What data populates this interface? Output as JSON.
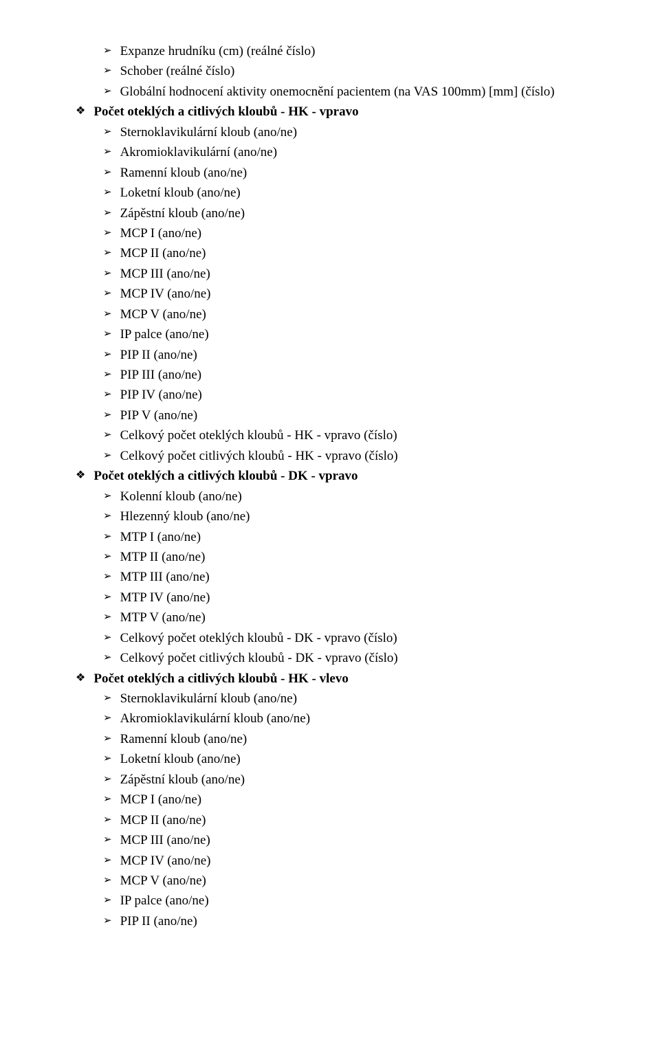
{
  "bullets": {
    "chevron": "➢",
    "diamond": "❖"
  },
  "items": [
    {
      "level": 1,
      "bullet": "chevron",
      "bold": false,
      "text": "Expanze hrudníku (cm) (reálné číslo)"
    },
    {
      "level": 1,
      "bullet": "chevron",
      "bold": false,
      "text": "Schober (reálné číslo)"
    },
    {
      "level": 1,
      "bullet": "chevron",
      "bold": false,
      "text": "Globální hodnocení aktivity onemocnění pacientem (na VAS 100mm) [mm] (číslo)"
    },
    {
      "level": 0,
      "bullet": "diamond",
      "bold": true,
      "text": "Počet oteklých a citlivých kloubů - HK - vpravo"
    },
    {
      "level": 1,
      "bullet": "chevron",
      "bold": false,
      "text": "Sternoklavikulární kloub (ano/ne)"
    },
    {
      "level": 1,
      "bullet": "chevron",
      "bold": false,
      "text": "Akromioklavikulární (ano/ne)"
    },
    {
      "level": 1,
      "bullet": "chevron",
      "bold": false,
      "text": "Ramenní kloub (ano/ne)"
    },
    {
      "level": 1,
      "bullet": "chevron",
      "bold": false,
      "text": "Loketní kloub (ano/ne)"
    },
    {
      "level": 1,
      "bullet": "chevron",
      "bold": false,
      "text": "Zápěstní kloub (ano/ne)"
    },
    {
      "level": 1,
      "bullet": "chevron",
      "bold": false,
      "text": "MCP I (ano/ne)"
    },
    {
      "level": 1,
      "bullet": "chevron",
      "bold": false,
      "text": "MCP II (ano/ne)"
    },
    {
      "level": 1,
      "bullet": "chevron",
      "bold": false,
      "text": "MCP III (ano/ne)"
    },
    {
      "level": 1,
      "bullet": "chevron",
      "bold": false,
      "text": "MCP IV (ano/ne)"
    },
    {
      "level": 1,
      "bullet": "chevron",
      "bold": false,
      "text": "MCP V (ano/ne)"
    },
    {
      "level": 1,
      "bullet": "chevron",
      "bold": false,
      "text": "IP palce (ano/ne)"
    },
    {
      "level": 1,
      "bullet": "chevron",
      "bold": false,
      "text": "PIP II (ano/ne)"
    },
    {
      "level": 1,
      "bullet": "chevron",
      "bold": false,
      "text": "PIP III (ano/ne)"
    },
    {
      "level": 1,
      "bullet": "chevron",
      "bold": false,
      "text": "PIP IV (ano/ne)"
    },
    {
      "level": 1,
      "bullet": "chevron",
      "bold": false,
      "text": "PIP V (ano/ne)"
    },
    {
      "level": 1,
      "bullet": "chevron",
      "bold": false,
      "text": "Celkový počet oteklých kloubů - HK - vpravo (číslo)"
    },
    {
      "level": 1,
      "bullet": "chevron",
      "bold": false,
      "text": "Celkový počet citlivých kloubů - HK - vpravo (číslo)"
    },
    {
      "level": 0,
      "bullet": "diamond",
      "bold": true,
      "text": "Počet oteklých a citlivých kloubů - DK - vpravo"
    },
    {
      "level": 1,
      "bullet": "chevron",
      "bold": false,
      "text": "Kolenní kloub (ano/ne)"
    },
    {
      "level": 1,
      "bullet": "chevron",
      "bold": false,
      "text": "Hlezenný kloub (ano/ne)"
    },
    {
      "level": 1,
      "bullet": "chevron",
      "bold": false,
      "text": "MTP I (ano/ne)"
    },
    {
      "level": 1,
      "bullet": "chevron",
      "bold": false,
      "text": "MTP II (ano/ne)"
    },
    {
      "level": 1,
      "bullet": "chevron",
      "bold": false,
      "text": "MTP III (ano/ne)"
    },
    {
      "level": 1,
      "bullet": "chevron",
      "bold": false,
      "text": "MTP IV (ano/ne)"
    },
    {
      "level": 1,
      "bullet": "chevron",
      "bold": false,
      "text": "MTP V (ano/ne)"
    },
    {
      "level": 1,
      "bullet": "chevron",
      "bold": false,
      "text": "Celkový počet oteklých kloubů - DK - vpravo (číslo)"
    },
    {
      "level": 1,
      "bullet": "chevron",
      "bold": false,
      "text": "Celkový počet citlivých kloubů - DK - vpravo (číslo)"
    },
    {
      "level": 0,
      "bullet": "diamond",
      "bold": true,
      "text": "Počet oteklých a citlivých kloubů - HK - vlevo"
    },
    {
      "level": 1,
      "bullet": "chevron",
      "bold": false,
      "text": "Sternoklavikulární kloub (ano/ne)"
    },
    {
      "level": 1,
      "bullet": "chevron",
      "bold": false,
      "text": "Akromioklavikulární kloub (ano/ne)"
    },
    {
      "level": 1,
      "bullet": "chevron",
      "bold": false,
      "text": "Ramenní kloub (ano/ne)"
    },
    {
      "level": 1,
      "bullet": "chevron",
      "bold": false,
      "text": "Loketní kloub (ano/ne)"
    },
    {
      "level": 1,
      "bullet": "chevron",
      "bold": false,
      "text": "Zápěstní kloub (ano/ne)"
    },
    {
      "level": 1,
      "bullet": "chevron",
      "bold": false,
      "text": "MCP I (ano/ne)"
    },
    {
      "level": 1,
      "bullet": "chevron",
      "bold": false,
      "text": "MCP II (ano/ne)"
    },
    {
      "level": 1,
      "bullet": "chevron",
      "bold": false,
      "text": "MCP III (ano/ne)"
    },
    {
      "level": 1,
      "bullet": "chevron",
      "bold": false,
      "text": "MCP IV (ano/ne)"
    },
    {
      "level": 1,
      "bullet": "chevron",
      "bold": false,
      "text": "MCP V (ano/ne)"
    },
    {
      "level": 1,
      "bullet": "chevron",
      "bold": false,
      "text": "IP palce (ano/ne)"
    },
    {
      "level": 1,
      "bullet": "chevron",
      "bold": false,
      "text": "PIP II (ano/ne)"
    }
  ]
}
